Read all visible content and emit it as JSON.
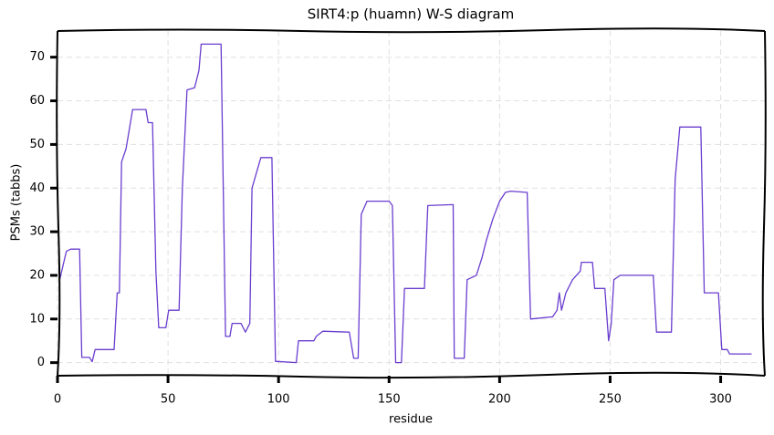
{
  "chart_data": {
    "type": "line",
    "title": "SIRT4:p (huamn) W-S diagram",
    "x_label": "residue",
    "y_label": "PSMs (tabbs)",
    "xlim": [
      0,
      320
    ],
    "ylim": [
      -3,
      76
    ],
    "xticks": [
      0,
      50,
      100,
      150,
      200,
      250,
      300
    ],
    "yticks": [
      0,
      10,
      20,
      30,
      40,
      50,
      60,
      70
    ],
    "grid": true,
    "x": [
      1,
      4,
      6,
      10,
      11,
      14.5,
      15.7,
      17,
      25.6,
      27,
      28,
      29,
      31,
      34,
      40,
      41,
      43,
      44.5,
      45.8,
      49,
      50.3,
      55,
      56.5,
      58.6,
      62,
      64,
      65,
      74,
      76,
      78,
      79,
      83,
      85,
      87,
      88,
      92,
      97,
      98.6,
      108,
      109,
      116,
      117,
      120,
      132,
      134,
      136,
      137.4,
      140,
      150,
      151.5,
      153,
      155.6,
      157,
      166,
      167.5,
      179,
      179.5,
      184,
      185.3,
      189.5,
      192,
      194,
      197,
      200,
      202.6,
      205,
      212.5,
      214,
      224,
      226,
      227,
      228,
      230,
      233,
      236.5,
      237,
      242,
      243,
      247.6,
      249.3,
      250.5,
      251.7,
      254.6,
      269.5,
      271,
      277.7,
      279.4,
      281.5,
      291,
      292.6,
      299,
      300.5,
      303,
      304,
      314
    ],
    "series": [
      {
        "name": "PSMs",
        "color": "#6a3dcf",
        "values": [
          19,
          25.5,
          26,
          26,
          1.2,
          1.2,
          0.2,
          3,
          3,
          16,
          16,
          46,
          49,
          58,
          58,
          55,
          55,
          21,
          8,
          8,
          12,
          12,
          40,
          62.5,
          63,
          67,
          73,
          73,
          6,
          6,
          9,
          9,
          7,
          9,
          40,
          47,
          47,
          0.3,
          0,
          5,
          5,
          6,
          7.2,
          7,
          1,
          1,
          34,
          37,
          37,
          36,
          0,
          0,
          17,
          17,
          36,
          36.2,
          1,
          1,
          19,
          20,
          24,
          28,
          33,
          37,
          39,
          39.3,
          39,
          10,
          10.5,
          12,
          16,
          12,
          16,
          19,
          21,
          23,
          23,
          17,
          17,
          5,
          9,
          19,
          20,
          20,
          7,
          7,
          42,
          54,
          54,
          16,
          16,
          3,
          3,
          2,
          2
        ]
      }
    ]
  }
}
